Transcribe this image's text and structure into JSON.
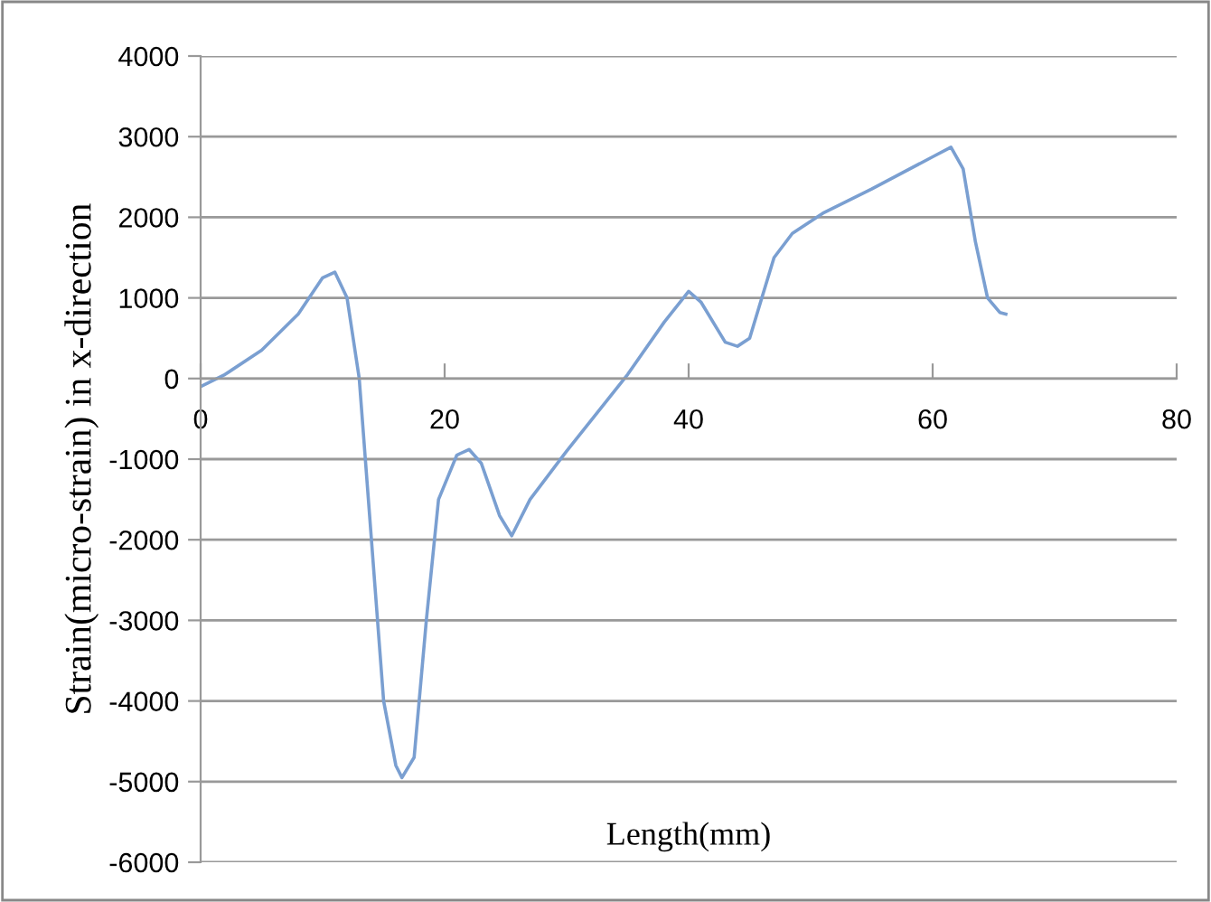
{
  "chart_data": {
    "type": "line",
    "xlabel": "Length(mm)",
    "ylabel": "Strain(micro-strain) in x-direction",
    "xlim": [
      0,
      80
    ],
    "xticks": [
      0,
      20,
      40,
      60,
      80
    ],
    "ylim": [
      -6000,
      4000
    ],
    "yticks": [
      -6000,
      -5000,
      -4000,
      -3000,
      -2000,
      -1000,
      0,
      1000,
      2000,
      3000,
      4000
    ],
    "grid": "y",
    "series": [
      {
        "color": "#7a9fd1",
        "x": [
          0,
          2,
          5,
          8,
          10,
          11,
          12,
          13,
          14,
          15,
          16,
          16.5,
          17.5,
          18.5,
          19.5,
          21,
          22,
          23,
          24.5,
          25.5,
          27,
          30,
          35,
          38,
          40,
          41,
          43,
          44,
          45,
          46,
          47,
          48.5,
          51,
          55,
          60,
          61.5,
          62.5,
          63.5,
          64.5,
          65.5,
          66
        ],
        "values": [
          -100,
          50,
          350,
          800,
          1250,
          1320,
          1000,
          0,
          -2000,
          -4000,
          -4800,
          -4950,
          -4700,
          -3000,
          -1500,
          -950,
          -880,
          -1050,
          -1700,
          -1950,
          -1500,
          -900,
          50,
          700,
          1080,
          950,
          450,
          400,
          500,
          1000,
          1500,
          1800,
          2050,
          2350,
          2750,
          2870,
          2600,
          1700,
          1000,
          820,
          800
        ]
      }
    ]
  }
}
